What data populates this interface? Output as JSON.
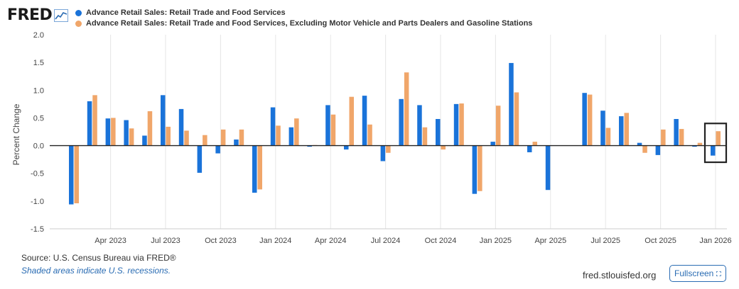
{
  "logo": {
    "text": "FRED"
  },
  "footer": {
    "source": "Source: U.S. Census Bureau via FRED®",
    "recession_note": "Shaded areas indicate U.S. recessions.",
    "site": "fred.stlouisfed.org",
    "fullscreen_label": "Fullscreen"
  },
  "colors": {
    "series1": "#1a73d9",
    "series2": "#f0a66a",
    "axis": "#555555",
    "grid": "#e6e6e6",
    "highlight_box": "#222222"
  },
  "chart_data": {
    "type": "bar",
    "ylabel": "Percent Change",
    "ylim": [
      -1.5,
      2.0
    ],
    "yticks": [
      2.0,
      1.5,
      1.0,
      0.5,
      0.0,
      -0.5,
      -1.0,
      -1.5
    ],
    "ytick_labels": [
      "2.0",
      "1.5",
      "1.0",
      "0.5",
      "0.0",
      "-0.5",
      "-1.0",
      "-1.5"
    ],
    "xtick_labels": [
      "Apr 2023",
      "Jul 2023",
      "Oct 2023",
      "Jan 2024",
      "Apr 2024",
      "Jul 2024",
      "Oct 2024",
      "Jan 2025",
      "Apr 2025",
      "Jul 2025",
      "Oct 2025",
      "Jan 2026"
    ],
    "xtick_month_index": [
      2,
      5,
      8,
      11,
      14,
      17,
      20,
      23,
      26,
      29,
      32,
      35
    ],
    "x": [
      "2023-02",
      "2023-03",
      "2023-04",
      "2023-05",
      "2023-06",
      "2023-07",
      "2023-08",
      "2023-09",
      "2023-10",
      "2023-11",
      "2023-12",
      "2024-01",
      "2024-02",
      "2024-03",
      "2024-04",
      "2024-05",
      "2024-06",
      "2024-07",
      "2024-08",
      "2024-09",
      "2024-10",
      "2024-11",
      "2024-12",
      "2025-01",
      "2025-02",
      "2025-03",
      "2025-04",
      "2025-05",
      "2025-06",
      "2025-07",
      "2025-08",
      "2025-09",
      "2025-10",
      "2025-11",
      "2025-12",
      "2026-01"
    ],
    "legend_position": "top",
    "grid": "vertical",
    "series": [
      {
        "name": "Advance Retail Sales: Retail Trade and Food Services",
        "values": [
          -1.06,
          0.8,
          0.49,
          0.46,
          0.18,
          0.91,
          0.66,
          -0.49,
          -0.14,
          0.11,
          -0.85,
          0.69,
          0.33,
          -0.02,
          0.73,
          -0.07,
          0.9,
          -0.28,
          0.84,
          0.73,
          0.48,
          0.75,
          -0.87,
          0.07,
          1.49,
          -0.12,
          -0.8,
          0.0,
          0.95,
          0.63,
          0.53,
          0.05,
          -0.17,
          0.48,
          -0.02,
          -0.18
        ]
      },
      {
        "name": "Advance Retail Sales: Retail Trade and Food Services, Excluding Motor Vehicle and Parts Dealers and Gasoline Stations",
        "values": [
          -1.04,
          0.91,
          0.5,
          0.31,
          0.62,
          0.34,
          0.27,
          0.19,
          0.29,
          0.29,
          -0.79,
          0.36,
          0.49,
          0.01,
          0.56,
          0.88,
          0.38,
          -0.13,
          1.32,
          0.33,
          -0.07,
          0.76,
          -0.82,
          0.72,
          0.96,
          0.07,
          0.0,
          0.0,
          0.92,
          0.32,
          0.59,
          -0.13,
          0.29,
          0.3,
          0.05,
          0.26
        ]
      }
    ],
    "highlight_month_index": 35
  }
}
